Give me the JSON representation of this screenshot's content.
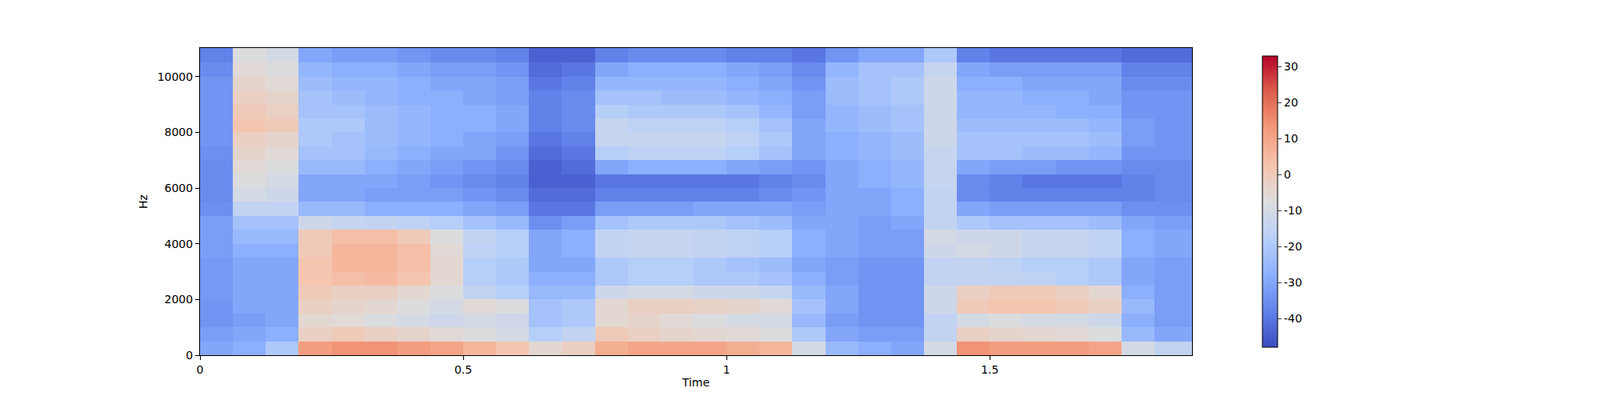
{
  "chart_data": {
    "type": "heatmap",
    "xlabel": "Time",
    "ylabel": "Hz",
    "x": [
      0,
      0.0625,
      0.125,
      0.1875,
      0.25,
      0.3125,
      0.375,
      0.4375,
      0.5,
      0.5625,
      0.625,
      0.6875,
      0.75,
      0.8125,
      0.875,
      0.9375,
      1.0,
      1.0625,
      1.125,
      1.1875,
      1.25,
      1.3125,
      1.375,
      1.4375,
      1.5,
      1.5625,
      1.625,
      1.6875,
      1.75,
      1.8125,
      1.884
    ],
    "y": [
      0,
      500,
      1000,
      1500,
      2000,
      2500,
      3000,
      3500,
      4000,
      4500,
      5000,
      5500,
      6000,
      6500,
      7000,
      7500,
      8000,
      8500,
      9000,
      9500,
      10000,
      10500,
      11025
    ],
    "cells": [
      [
        -30,
        -28,
        -20,
        12,
        14,
        14,
        12,
        10,
        6,
        2,
        -5,
        -2,
        8,
        10,
        10,
        10,
        8,
        6,
        -10,
        -25,
        -28,
        -30,
        -10,
        14,
        12,
        12,
        12,
        10,
        -10,
        -15
      ],
      [
        -32,
        -30,
        -28,
        -2,
        0,
        -2,
        -4,
        -6,
        -8,
        -10,
        -18,
        -15,
        0,
        -2,
        -4,
        -5,
        -6,
        -8,
        -20,
        -30,
        -32,
        -32,
        -15,
        -2,
        -4,
        -5,
        -6,
        -8,
        -25,
        -30
      ],
      [
        -34,
        -32,
        -30,
        -5,
        -6,
        -8,
        -10,
        -12,
        -10,
        -12,
        -22,
        -20,
        -5,
        -4,
        -6,
        -8,
        -10,
        -10,
        -25,
        -32,
        -34,
        -34,
        -15,
        -10,
        -8,
        -10,
        -10,
        -12,
        -28,
        -32
      ],
      [
        -34,
        -30,
        -30,
        -2,
        -4,
        -5,
        -8,
        -10,
        -6,
        -8,
        -22,
        -20,
        -5,
        -2,
        -2,
        -3,
        -4,
        -6,
        -22,
        -30,
        -34,
        -34,
        -12,
        0,
        2,
        2,
        0,
        -2,
        -25,
        -32
      ],
      [
        -33,
        -30,
        -30,
        0,
        -2,
        -2,
        -5,
        -8,
        -15,
        -18,
        -25,
        -25,
        -12,
        -10,
        -10,
        -12,
        -12,
        -14,
        -25,
        -30,
        -34,
        -34,
        -12,
        -2,
        0,
        0,
        -2,
        -5,
        -28,
        -32
      ],
      [
        -33,
        -30,
        -30,
        2,
        4,
        5,
        2,
        -5,
        -18,
        -20,
        -28,
        -28,
        -20,
        -18,
        -18,
        -20,
        -20,
        -22,
        -28,
        -32,
        -34,
        -34,
        -15,
        -15,
        -15,
        -16,
        -18,
        -20,
        -30,
        -32
      ],
      [
        -33,
        -30,
        -30,
        2,
        6,
        6,
        4,
        -5,
        -18,
        -20,
        -30,
        -30,
        -20,
        -18,
        -18,
        -20,
        -22,
        -24,
        -30,
        -32,
        -34,
        -34,
        -15,
        -15,
        -16,
        -18,
        -18,
        -20,
        -30,
        -32
      ],
      [
        -32,
        -28,
        -28,
        0,
        6,
        6,
        4,
        -6,
        -16,
        -18,
        -30,
        -28,
        -15,
        -14,
        -14,
        -15,
        -16,
        -18,
        -28,
        -30,
        -32,
        -32,
        -12,
        -10,
        -12,
        -14,
        -14,
        -16,
        -28,
        -30
      ],
      [
        -32,
        -25,
        -25,
        0,
        4,
        4,
        0,
        -8,
        -15,
        -18,
        -30,
        -28,
        -15,
        -14,
        -14,
        -15,
        -16,
        -18,
        -28,
        -30,
        -32,
        -32,
        -10,
        -12,
        -12,
        -14,
        -14,
        -16,
        -28,
        -30
      ],
      [
        -32,
        -22,
        -22,
        -12,
        -14,
        -15,
        -16,
        -18,
        -22,
        -25,
        -35,
        -32,
        -22,
        -20,
        -20,
        -20,
        -22,
        -24,
        -30,
        -30,
        -32,
        -30,
        -15,
        -20,
        -22,
        -22,
        -22,
        -24,
        -30,
        -32
      ],
      [
        -35,
        -15,
        -15,
        -25,
        -25,
        -28,
        -28,
        -28,
        -30,
        -32,
        -40,
        -40,
        -32,
        -32,
        -32,
        -30,
        -30,
        -30,
        -32,
        -30,
        -30,
        -28,
        -15,
        -30,
        -32,
        -32,
        -32,
        -32,
        -35,
        -35
      ],
      [
        -36,
        -10,
        -12,
        -30,
        -30,
        -32,
        -32,
        -32,
        -34,
        -36,
        -42,
        -42,
        -38,
        -38,
        -38,
        -38,
        -38,
        -36,
        -34,
        -30,
        -30,
        -28,
        -15,
        -36,
        -38,
        -38,
        -38,
        -38,
        -38,
        -36
      ],
      [
        -36,
        -8,
        -10,
        -30,
        -30,
        -30,
        -32,
        -34,
        -36,
        -38,
        -44,
        -44,
        -40,
        -40,
        -40,
        -40,
        -40,
        -38,
        -36,
        -30,
        -28,
        -26,
        -14,
        -36,
        -38,
        -40,
        -40,
        -40,
        -38,
        -36
      ],
      [
        -36,
        -6,
        -8,
        -25,
        -25,
        -28,
        -30,
        -32,
        -34,
        -36,
        -44,
        -42,
        -30,
        -28,
        -28,
        -28,
        -30,
        -32,
        -34,
        -30,
        -28,
        -26,
        -14,
        -30,
        -32,
        -32,
        -34,
        -34,
        -36,
        -36
      ],
      [
        -35,
        -4,
        -6,
        -22,
        -22,
        -25,
        -28,
        -30,
        -30,
        -34,
        -42,
        -40,
        -18,
        -16,
        -16,
        -16,
        -18,
        -22,
        -30,
        -28,
        -26,
        -24,
        -14,
        -22,
        -22,
        -24,
        -24,
        -26,
        -34,
        -34
      ],
      [
        -34,
        -2,
        -4,
        -20,
        -22,
        -24,
        -26,
        -28,
        -30,
        -32,
        -40,
        -38,
        -14,
        -14,
        -14,
        -14,
        -16,
        -20,
        -30,
        -28,
        -26,
        -24,
        -12,
        -22,
        -22,
        -22,
        -22,
        -24,
        -32,
        -34
      ],
      [
        -34,
        2,
        0,
        -20,
        -20,
        -24,
        -26,
        -28,
        -28,
        -30,
        -38,
        -36,
        -14,
        -16,
        -16,
        -16,
        -18,
        -22,
        -30,
        -26,
        -24,
        -22,
        -12,
        -24,
        -24,
        -24,
        -24,
        -26,
        -32,
        -34
      ],
      [
        -34,
        0,
        -2,
        -22,
        -22,
        -24,
        -26,
        -28,
        -28,
        -30,
        -38,
        -36,
        -18,
        -20,
        -20,
        -20,
        -22,
        -26,
        -32,
        -26,
        -24,
        -22,
        -12,
        -26,
        -26,
        -26,
        -28,
        -28,
        -34,
        -34
      ],
      [
        -34,
        -2,
        -4,
        -22,
        -24,
        -26,
        -28,
        -28,
        -30,
        -32,
        -38,
        -36,
        -22,
        -22,
        -24,
        -24,
        -26,
        -28,
        -32,
        -24,
        -22,
        -20,
        -12,
        -26,
        -26,
        -28,
        -28,
        -30,
        -34,
        -34
      ],
      [
        -34,
        -4,
        -6,
        -24,
        -26,
        -26,
        -28,
        -30,
        -30,
        -32,
        -40,
        -38,
        -26,
        -26,
        -26,
        -26,
        -28,
        -30,
        -34,
        -24,
        -22,
        -20,
        -12,
        -28,
        -28,
        -30,
        -30,
        -30,
        -36,
        -36
      ],
      [
        -36,
        -6,
        -8,
        -26,
        -28,
        -28,
        -30,
        -32,
        -32,
        -34,
        -42,
        -40,
        -30,
        -28,
        -28,
        -28,
        -30,
        -32,
        -36,
        -26,
        -22,
        -22,
        -14,
        -30,
        -32,
        -32,
        -32,
        -32,
        -38,
        -38
      ],
      [
        -38,
        -8,
        -10,
        -30,
        -32,
        -32,
        -34,
        -36,
        -36,
        -38,
        -44,
        -44,
        -38,
        -36,
        -36,
        -36,
        -38,
        -38,
        -40,
        -34,
        -30,
        -30,
        -20,
        -38,
        -40,
        -40,
        -40,
        -40,
        -42,
        -42
      ]
    ],
    "xlim": [
      0,
      1.884
    ],
    "ylim": [
      0,
      11025
    ],
    "xticks": [
      0,
      0.5,
      1,
      1.5
    ],
    "yticks": [
      0,
      2000,
      4000,
      6000,
      8000,
      10000
    ],
    "colorbar": {
      "range": [
        -48,
        33
      ],
      "ticks": [
        -40,
        -30,
        -20,
        -10,
        0,
        10,
        20,
        30
      ]
    }
  }
}
